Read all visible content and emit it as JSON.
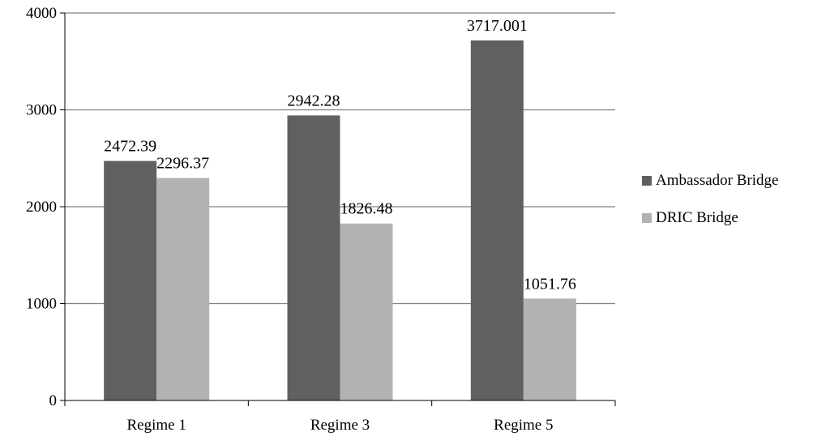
{
  "chart_data": {
    "type": "bar",
    "categories": [
      "Regime 1",
      "Regime 3",
      "Regime 5"
    ],
    "series": [
      {
        "name": "Ambassador Bridge",
        "values": [
          2472.39,
          2942.28,
          3717.001
        ],
        "labels": [
          "2472.39",
          "2942.28",
          "3717.001"
        ],
        "color": "#606060"
      },
      {
        "name": "DRIC Bridge",
        "values": [
          2296.37,
          1826.48,
          1051.76
        ],
        "labels": [
          "2296.37",
          "1826.48",
          "1051.76"
        ],
        "color": "#b2b2b2"
      }
    ],
    "ylim": [
      0,
      4000
    ],
    "yticks": [
      0,
      1000,
      2000,
      3000,
      4000
    ],
    "grid": true,
    "legend": "right",
    "title": "",
    "xlabel": "",
    "ylabel": ""
  }
}
